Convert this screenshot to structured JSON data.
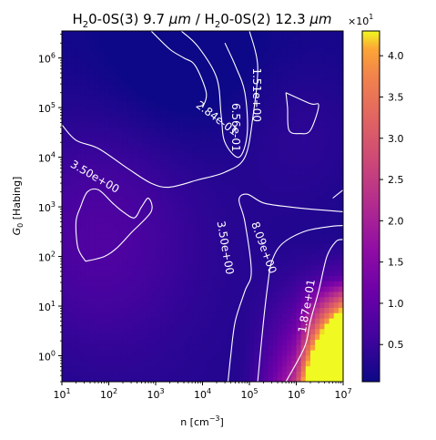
{
  "chart_data": {
    "type": "heatmap",
    "title": "H₂0-0S(3) 9.7 μm / H₂0-0S(2) 12.3 μm",
    "title_parts": {
      "num_prefix": "H",
      "num_sub": "2",
      "num_mid": "0-0S(3) 9.7 ",
      "num_unit": "μm",
      "sep": " / ",
      "den_prefix": "H",
      "den_sub": "2",
      "den_mid": "0-0S(2) 12.3 ",
      "den_unit": "μm"
    },
    "xlabel": "n [cm⁻³]",
    "xlabel_parts": {
      "base": "n [cm",
      "sup": "−3",
      "close": "]"
    },
    "ylabel": "G₀ [Habing]",
    "ylabel_parts": {
      "base": "G",
      "sub": "0",
      "rest": " [Habing]"
    },
    "x_scale": "log",
    "y_scale": "log",
    "xlim": [
      10,
      10000000
    ],
    "ylim": [
      0.3,
      3500000
    ],
    "x_ticks": [
      {
        "value": 10,
        "base": "10",
        "exp": "1"
      },
      {
        "value": 100,
        "base": "10",
        "exp": "2"
      },
      {
        "value": 1000,
        "base": "10",
        "exp": "3"
      },
      {
        "value": 10000,
        "base": "10",
        "exp": "4"
      },
      {
        "value": 100000,
        "base": "10",
        "exp": "5"
      },
      {
        "value": 1000000,
        "base": "10",
        "exp": "6"
      },
      {
        "value": 10000000,
        "base": "10",
        "exp": "7"
      }
    ],
    "y_ticks": [
      {
        "value": 1,
        "base": "10",
        "exp": "0"
      },
      {
        "value": 10,
        "base": "10",
        "exp": "1"
      },
      {
        "value": 100,
        "base": "10",
        "exp": "2"
      },
      {
        "value": 1000,
        "base": "10",
        "exp": "3"
      },
      {
        "value": 10000,
        "base": "10",
        "exp": "4"
      },
      {
        "value": 100000,
        "base": "10",
        "exp": "5"
      },
      {
        "value": 1000000,
        "base": "10",
        "exp": "6"
      }
    ],
    "colorbar": {
      "colormap": "plasma",
      "range": [
        0.05,
        4.3
      ],
      "ticks": [
        "0.5",
        "1.0",
        "1.5",
        "2.0",
        "2.5",
        "3.0",
        "3.5",
        "4.0"
      ],
      "tick_values": [
        0.5,
        1.0,
        1.5,
        2.0,
        2.5,
        3.0,
        3.5,
        4.0
      ],
      "offset_text": {
        "base": "×10",
        "exp": "1"
      }
    },
    "contour_labels": [
      {
        "text": "2.84e-01",
        "x": 20000,
        "y": 60000,
        "angle": 37
      },
      {
        "text": "6.56e-01",
        "x": 50000,
        "y": 40000,
        "angle": 90
      },
      {
        "text": "1.51e+00",
        "x": 140000,
        "y": 180000,
        "angle": 90
      },
      {
        "text": "3.50e+00",
        "x": 50,
        "y": 4000,
        "angle": 30
      },
      {
        "text": "3.50e+00",
        "x": 30000,
        "y": 150,
        "angle": 80
      },
      {
        "text": "8.09e+00",
        "x": 200000,
        "y": 150,
        "angle": 70
      },
      {
        "text": "1.87e+01",
        "x": 1700000,
        "y": 10,
        "angle": -80
      }
    ],
    "contours": [
      {
        "level": 0.284,
        "points": [
          [
            800,
            3500000
          ],
          [
            2000,
            1500000
          ],
          [
            4000,
            1000000
          ],
          [
            7000,
            700000
          ],
          [
            12000,
            200000
          ],
          [
            10000,
            100000
          ]
        ]
      },
      {
        "level": 0.656,
        "points": [
          [
            3500,
            3500000
          ],
          [
            8000,
            1700000
          ],
          [
            20000,
            400000
          ],
          [
            25000,
            70000
          ],
          [
            30000,
            20000
          ],
          [
            60000,
            10000
          ],
          [
            90000,
            30000
          ],
          [
            80000,
            200000
          ],
          [
            50000,
            700000
          ],
          [
            30000,
            2000000
          ]
        ]
      },
      {
        "level": 1.51,
        "points": [
          [
            100000,
            3500000
          ],
          [
            150000,
            700000
          ],
          [
            120000,
            70000
          ],
          [
            80000,
            10000
          ],
          [
            30000,
            5000
          ],
          [
            8000,
            3500
          ],
          [
            2000,
            2500
          ],
          [
            800,
            3000
          ],
          [
            250,
            6000
          ],
          [
            60,
            15000
          ],
          [
            20,
            22000
          ],
          [
            10,
            45000
          ]
        ]
      },
      {
        "level": 1.51,
        "points": [
          [
            600000,
            200000
          ],
          [
            2000000,
            120000
          ],
          [
            3000000,
            110000
          ],
          [
            2000000,
            35000
          ],
          [
            1200000,
            30000
          ],
          [
            700000,
            35000
          ],
          [
            650000,
            100000
          ],
          [
            600000,
            200000
          ]
        ]
      },
      {
        "level": 3.5,
        "points": [
          [
            32,
            80
          ],
          [
            22,
            150
          ],
          [
            20,
            500
          ],
          [
            25,
            1000
          ],
          [
            35,
            2000
          ],
          [
            60,
            2200
          ],
          [
            120,
            1200
          ],
          [
            200,
            800
          ],
          [
            350,
            600
          ],
          [
            500,
            1000
          ],
          [
            700,
            1500
          ],
          [
            800,
            800
          ],
          [
            300,
            300
          ],
          [
            150,
            150
          ],
          [
            80,
            100
          ],
          [
            32,
            80
          ]
        ]
      },
      {
        "level": 3.5,
        "points": [
          [
            35000,
            0.3
          ],
          [
            40000,
            1
          ],
          [
            50000,
            5
          ],
          [
            80000,
            20
          ],
          [
            110000,
            50
          ],
          [
            80000,
            500
          ],
          [
            60000,
            1400
          ],
          [
            90000,
            1800
          ],
          [
            200000,
            1200
          ],
          [
            700000,
            1000
          ],
          [
            2000000,
            900
          ],
          [
            10000000,
            800
          ]
        ]
      },
      {
        "level": 3.5,
        "points": [
          [
            6000000,
            1500
          ],
          [
            10000000,
            2200
          ]
        ]
      },
      {
        "level": 8.09,
        "points": [
          [
            150000,
            0.3
          ],
          [
            200000,
            5
          ],
          [
            250000,
            30
          ],
          [
            300000,
            80
          ],
          [
            500000,
            180
          ],
          [
            1500000,
            320
          ],
          [
            5000000,
            400
          ],
          [
            10000000,
            420
          ]
        ]
      },
      {
        "level": 18.7,
        "points": [
          [
            600000,
            0.3
          ],
          [
            1500000,
            1.5
          ],
          [
            2000000,
            5
          ],
          [
            3000000,
            20
          ],
          [
            4500000,
            100
          ],
          [
            7000000,
            200
          ],
          [
            10000000,
            220
          ]
        ]
      }
    ]
  }
}
